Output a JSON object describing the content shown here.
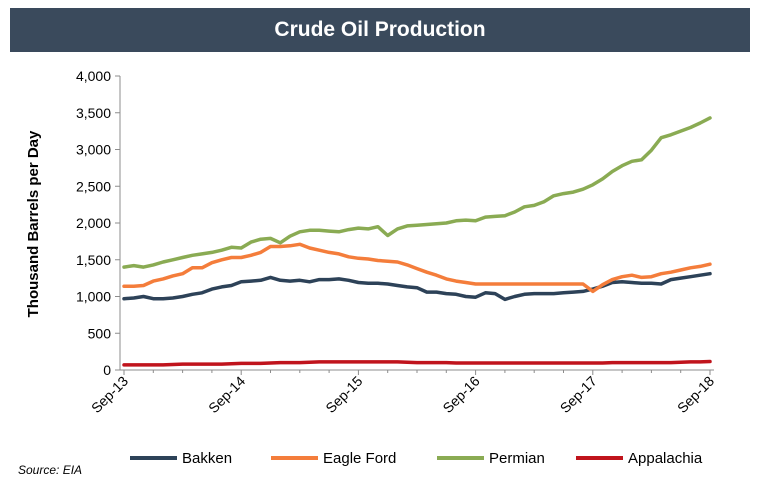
{
  "chart_data": {
    "type": "line",
    "title": "Crude Oil Production",
    "xlabel": "",
    "ylabel": "Thousand Barrels per Day",
    "ylim": [
      0,
      4000
    ],
    "yticks": [
      0,
      500,
      1000,
      1500,
      2000,
      2500,
      3000,
      3500,
      4000
    ],
    "ytick_labels": [
      "0",
      "500",
      "1,000",
      "1,500",
      "2,000",
      "2,500",
      "3,000",
      "3,500",
      "4,000"
    ],
    "x_start_label": "Sep-13",
    "x_tick_labels": [
      "Sep-13",
      "Sep-14",
      "Sep-15",
      "Sep-16",
      "Sep-17",
      "Sep-18"
    ],
    "x_tick_months": [
      0,
      12,
      24,
      36,
      48,
      60
    ],
    "x_range_months": [
      0,
      60
    ],
    "source": "Source: EIA",
    "legend_position": "bottom",
    "series": [
      {
        "name": "Bakken",
        "color": "#2d4258",
        "values": [
          970,
          980,
          1000,
          970,
          970,
          980,
          1000,
          1030,
          1050,
          1100,
          1130,
          1150,
          1200,
          1210,
          1220,
          1260,
          1220,
          1210,
          1220,
          1200,
          1230,
          1230,
          1240,
          1220,
          1190,
          1180,
          1180,
          1170,
          1150,
          1130,
          1120,
          1060,
          1060,
          1040,
          1030,
          1000,
          990,
          1050,
          1040,
          960,
          1000,
          1030,
          1040,
          1040,
          1040,
          1050,
          1060,
          1070,
          1100,
          1140,
          1190,
          1200,
          1190,
          1180,
          1180,
          1170,
          1230,
          1250,
          1270,
          1290,
          1310
        ]
      },
      {
        "name": "Eagle Ford",
        "color": "#f47d3b",
        "values": [
          1140,
          1140,
          1150,
          1210,
          1240,
          1280,
          1310,
          1390,
          1390,
          1460,
          1500,
          1530,
          1530,
          1560,
          1600,
          1680,
          1680,
          1690,
          1710,
          1660,
          1630,
          1600,
          1580,
          1540,
          1520,
          1510,
          1490,
          1480,
          1470,
          1430,
          1380,
          1330,
          1290,
          1240,
          1210,
          1190,
          1170,
          1170,
          1170,
          1170,
          1170,
          1170,
          1170,
          1170,
          1170,
          1170,
          1170,
          1170,
          1070,
          1160,
          1230,
          1270,
          1290,
          1260,
          1270,
          1310,
          1330,
          1360,
          1390,
          1410,
          1440
        ]
      },
      {
        "name": "Permian",
        "color": "#8aab53",
        "values": [
          1400,
          1420,
          1400,
          1430,
          1470,
          1500,
          1530,
          1560,
          1580,
          1600,
          1630,
          1670,
          1660,
          1740,
          1780,
          1790,
          1730,
          1820,
          1880,
          1900,
          1900,
          1890,
          1880,
          1910,
          1930,
          1920,
          1950,
          1830,
          1920,
          1960,
          1970,
          1980,
          1990,
          2000,
          2030,
          2040,
          2030,
          2080,
          2090,
          2100,
          2150,
          2220,
          2240,
          2290,
          2370,
          2400,
          2420,
          2460,
          2520,
          2600,
          2700,
          2780,
          2840,
          2860,
          2990,
          3160,
          3200,
          3250,
          3300,
          3360,
          3430
        ]
      },
      {
        "name": "Appalachia",
        "color": "#c0141c",
        "values": [
          70,
          70,
          70,
          70,
          70,
          75,
          80,
          80,
          80,
          80,
          80,
          85,
          90,
          90,
          90,
          95,
          100,
          100,
          100,
          105,
          110,
          110,
          110,
          110,
          110,
          110,
          110,
          110,
          110,
          105,
          100,
          100,
          100,
          100,
          95,
          95,
          95,
          95,
          95,
          95,
          95,
          95,
          95,
          95,
          95,
          95,
          95,
          95,
          95,
          95,
          100,
          100,
          100,
          100,
          100,
          100,
          100,
          105,
          110,
          110,
          115
        ]
      }
    ]
  }
}
